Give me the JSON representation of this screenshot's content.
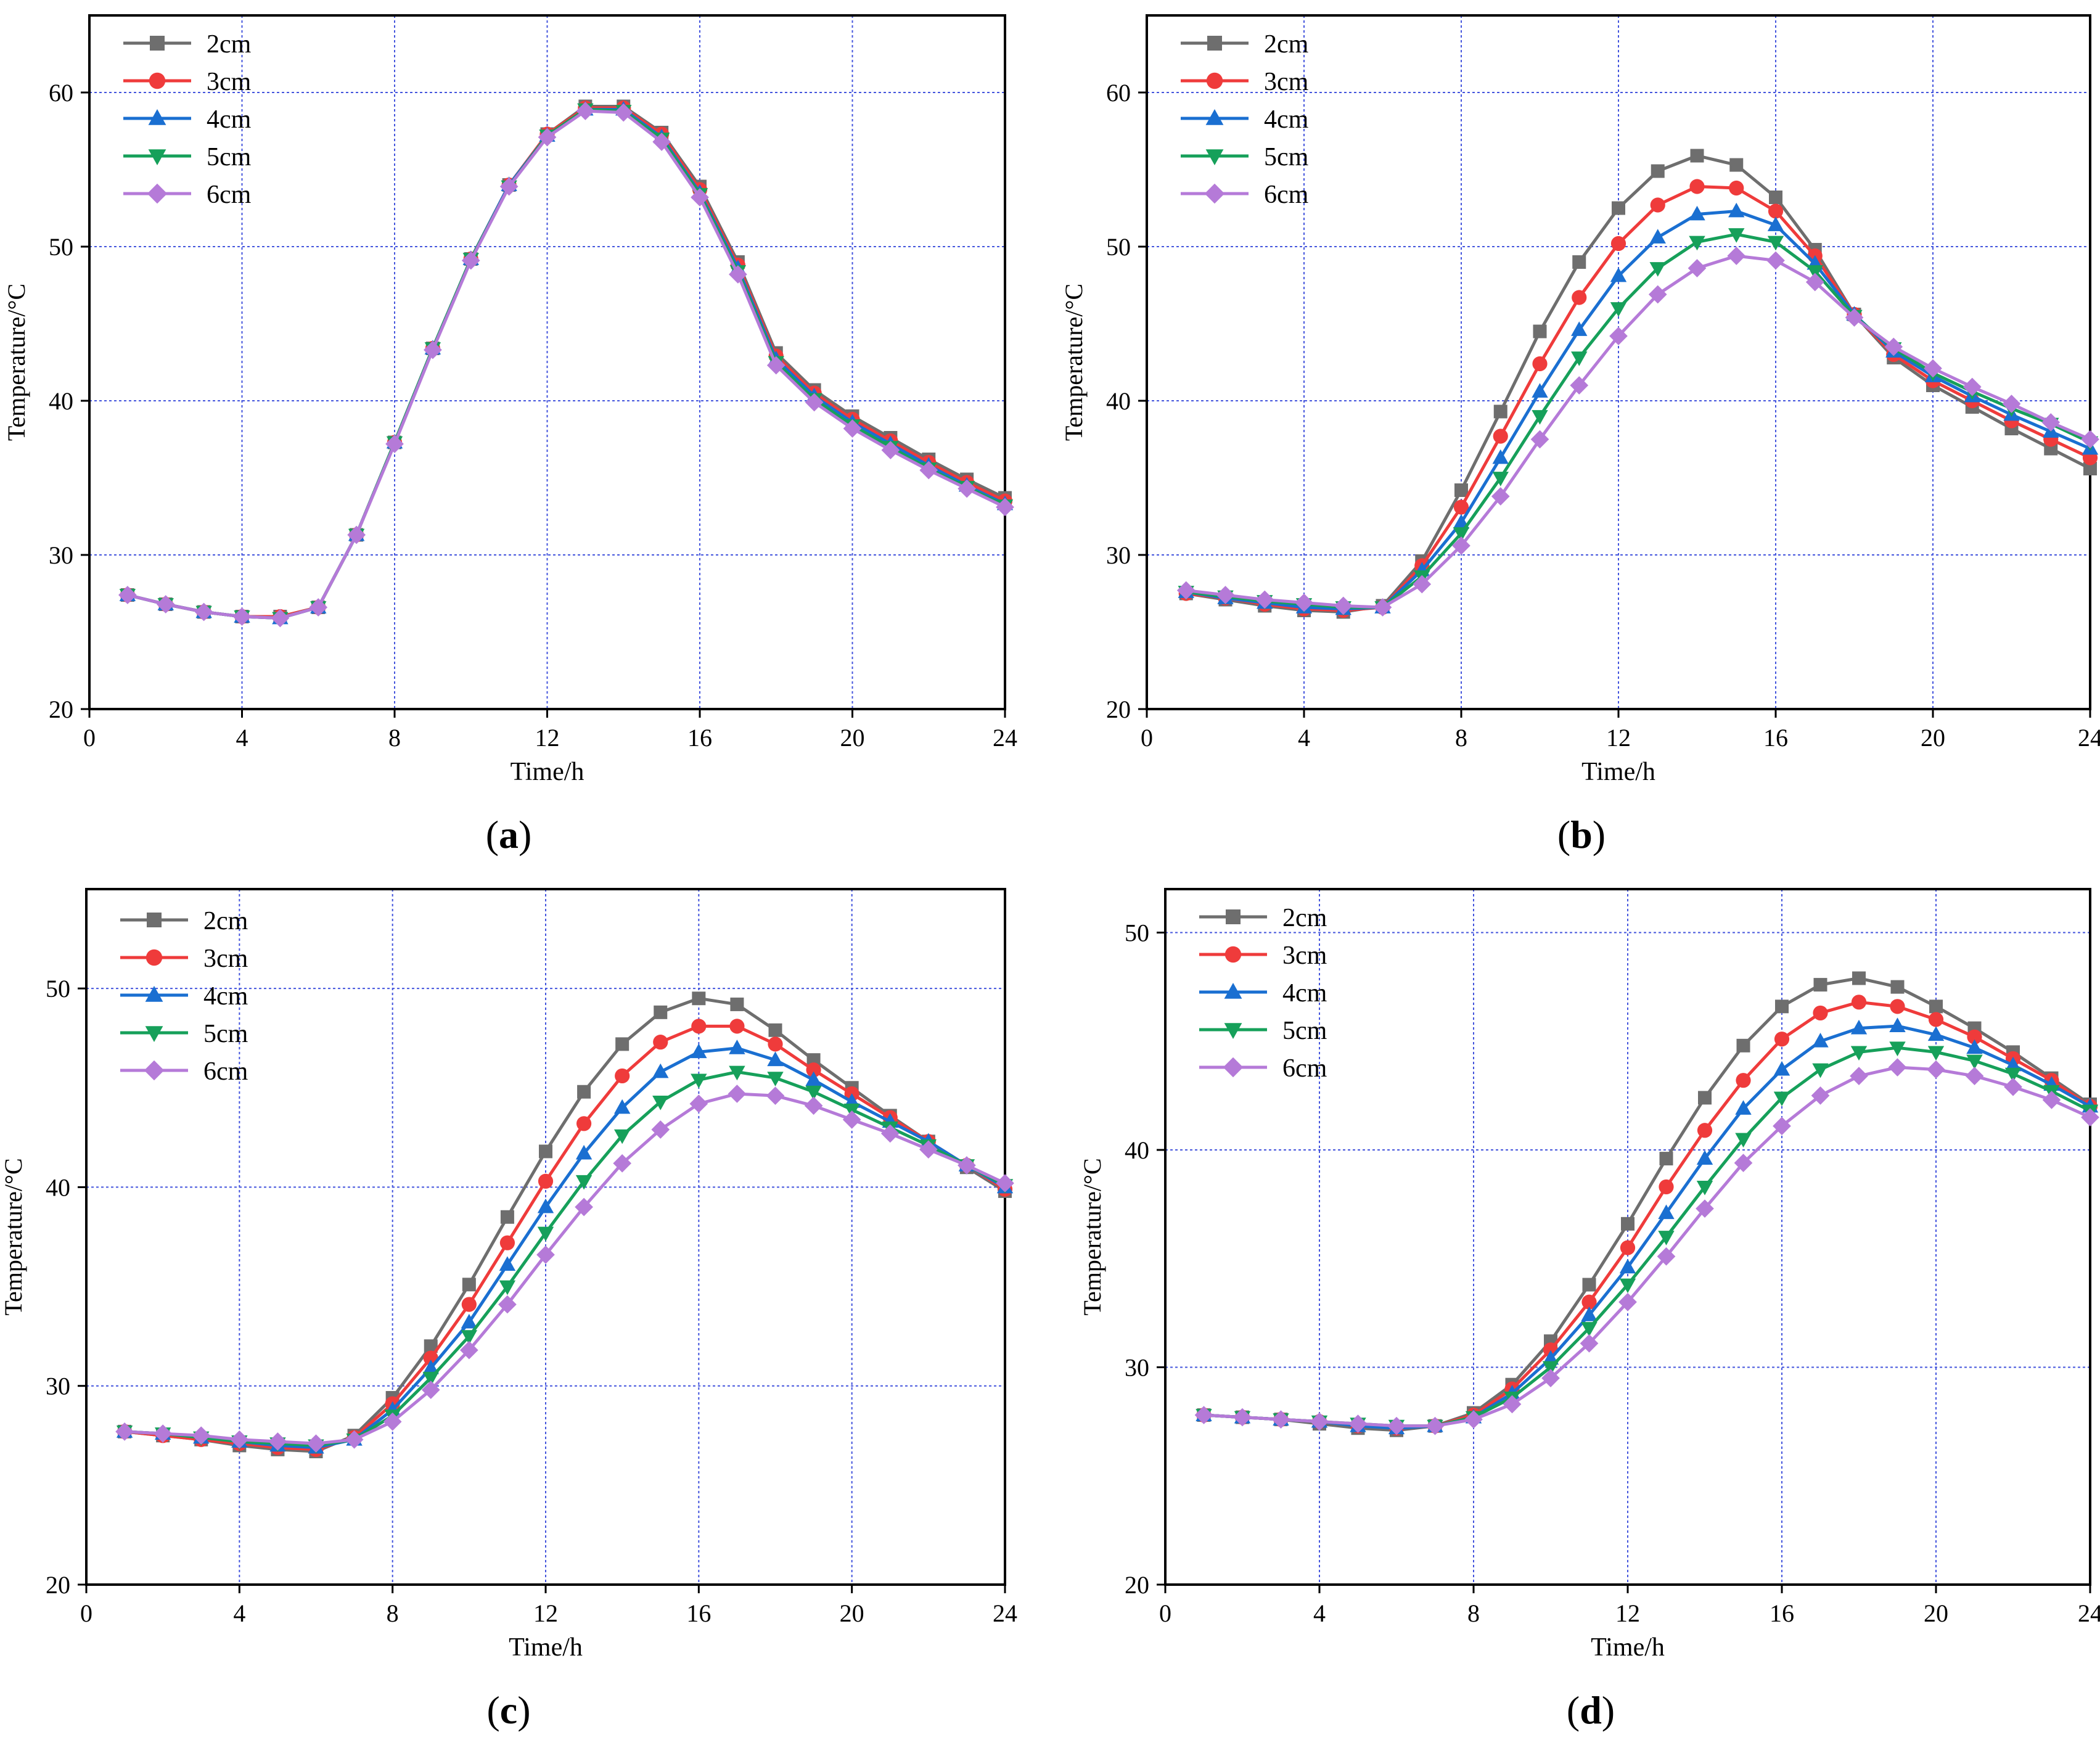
{
  "captions": [
    "(a)",
    "(b)",
    "(c)",
    "(d)"
  ],
  "series_styles": [
    {
      "name": "2cm",
      "color": "#6e6e6e",
      "marker": "square"
    },
    {
      "name": "3cm",
      "color": "#ef3b3b",
      "marker": "circle"
    },
    {
      "name": "4cm",
      "color": "#1a6fd1",
      "marker": "triangle-up"
    },
    {
      "name": "5cm",
      "color": "#16a05a",
      "marker": "triangle-down"
    },
    {
      "name": "6cm",
      "color": "#b57ad8",
      "marker": "diamond"
    }
  ],
  "grid_color": "#4455dd",
  "chart_data": [
    {
      "type": "line",
      "title": "",
      "xlabel": "Time/h",
      "ylabel": "Temperature/°C",
      "xlim": [
        0,
        24
      ],
      "ylim": [
        20,
        65
      ],
      "xticks": [
        0,
        4,
        8,
        12,
        16,
        20,
        24
      ],
      "yticks": [
        20,
        30,
        40,
        50,
        60
      ],
      "grid": true,
      "legend": "top-left",
      "x": [
        1,
        2,
        3,
        4,
        5,
        6,
        7,
        8,
        9,
        10,
        11,
        12,
        13,
        14,
        15,
        16,
        17,
        18,
        19,
        20,
        21,
        22,
        23,
        24
      ],
      "series": [
        {
          "name": "2cm",
          "values": [
            27.4,
            26.8,
            26.3,
            26.0,
            26.0,
            26.6,
            31.3,
            37.3,
            43.4,
            49.2,
            54.0,
            57.3,
            59.1,
            59.1,
            57.4,
            53.9,
            49.0,
            43.1,
            40.7,
            39.0,
            37.6,
            36.2,
            34.9,
            33.7
          ]
        },
        {
          "name": "3cm",
          "values": [
            27.4,
            26.8,
            26.3,
            26.0,
            26.0,
            26.6,
            31.3,
            37.3,
            43.4,
            49.2,
            54.0,
            57.3,
            59.0,
            59.0,
            57.3,
            53.7,
            48.8,
            42.9,
            40.5,
            38.8,
            37.4,
            36.0,
            34.7,
            33.5
          ]
        },
        {
          "name": "4cm",
          "values": [
            27.4,
            26.8,
            26.3,
            26.0,
            25.9,
            26.6,
            31.3,
            37.3,
            43.4,
            49.2,
            54.0,
            57.2,
            58.9,
            58.9,
            57.1,
            53.5,
            48.6,
            42.7,
            40.3,
            38.6,
            37.2,
            35.8,
            34.5,
            33.3
          ]
        },
        {
          "name": "5cm",
          "values": [
            27.4,
            26.8,
            26.3,
            26.0,
            25.9,
            26.6,
            31.3,
            37.3,
            43.4,
            49.2,
            53.9,
            57.2,
            58.9,
            58.8,
            57.0,
            53.4,
            48.4,
            42.5,
            40.1,
            38.4,
            37.0,
            35.6,
            34.4,
            33.2
          ]
        },
        {
          "name": "6cm",
          "values": [
            27.4,
            26.8,
            26.3,
            26.0,
            25.9,
            26.6,
            31.3,
            37.2,
            43.3,
            49.1,
            53.9,
            57.1,
            58.8,
            58.7,
            56.8,
            53.2,
            48.2,
            42.3,
            39.9,
            38.2,
            36.8,
            35.5,
            34.3,
            33.1
          ]
        }
      ]
    },
    {
      "type": "line",
      "title": "",
      "xlabel": "Time/h",
      "ylabel": "Temperature/°C",
      "xlim": [
        0,
        24
      ],
      "ylim": [
        20,
        65
      ],
      "xticks": [
        0,
        4,
        8,
        12,
        16,
        20,
        24
      ],
      "yticks": [
        20,
        30,
        40,
        50,
        60
      ],
      "grid": true,
      "legend": "top-left",
      "x": [
        1,
        2,
        3,
        4,
        5,
        6,
        7,
        8,
        9,
        10,
        11,
        12,
        13,
        14,
        15,
        16,
        17,
        18,
        19,
        20,
        21,
        22,
        23,
        24
      ],
      "series": [
        {
          "name": "2cm",
          "values": [
            27.5,
            27.1,
            26.7,
            26.4,
            26.3,
            26.7,
            29.6,
            34.2,
            39.3,
            44.5,
            49.0,
            52.5,
            54.9,
            55.9,
            55.3,
            53.2,
            49.8,
            45.6,
            42.8,
            41.0,
            39.6,
            38.2,
            36.9,
            35.6
          ]
        },
        {
          "name": "3cm",
          "values": [
            27.5,
            27.2,
            26.8,
            26.5,
            26.4,
            26.6,
            29.3,
            33.1,
            37.7,
            42.4,
            46.7,
            50.2,
            52.7,
            53.9,
            53.8,
            52.3,
            49.4,
            45.6,
            43.0,
            41.3,
            40.0,
            38.7,
            37.5,
            36.3
          ]
        },
        {
          "name": "4cm",
          "values": [
            27.6,
            27.2,
            26.9,
            26.6,
            26.5,
            26.6,
            29.0,
            32.1,
            36.3,
            40.6,
            44.6,
            48.1,
            50.6,
            52.1,
            52.3,
            51.4,
            48.9,
            45.6,
            43.2,
            41.6,
            40.3,
            39.1,
            38.0,
            36.9
          ]
        },
        {
          "name": "5cm",
          "values": [
            27.6,
            27.3,
            27.0,
            26.8,
            26.6,
            26.6,
            28.6,
            31.4,
            35.0,
            39.0,
            42.8,
            46.0,
            48.6,
            50.3,
            50.8,
            50.3,
            48.4,
            45.5,
            43.4,
            41.8,
            40.6,
            39.5,
            38.5,
            37.3
          ]
        },
        {
          "name": "6cm",
          "values": [
            27.7,
            27.4,
            27.1,
            26.9,
            26.7,
            26.6,
            28.1,
            30.6,
            33.8,
            37.5,
            41.0,
            44.2,
            46.9,
            48.6,
            49.4,
            49.1,
            47.7,
            45.4,
            43.5,
            42.1,
            40.9,
            39.8,
            38.6,
            37.5
          ]
        }
      ]
    },
    {
      "type": "line",
      "title": "",
      "xlabel": "Time/h",
      "ylabel": "Temperature/°C",
      "xlim": [
        0,
        24
      ],
      "ylim": [
        20,
        55
      ],
      "xticks": [
        0,
        4,
        8,
        12,
        16,
        20,
        24
      ],
      "yticks": [
        20,
        30,
        40,
        50
      ],
      "grid": true,
      "legend": "top-left",
      "x": [
        1,
        2,
        3,
        4,
        5,
        6,
        7,
        8,
        9,
        10,
        11,
        12,
        13,
        14,
        15,
        16,
        17,
        18,
        19,
        20,
        21,
        22,
        23,
        24
      ],
      "series": [
        {
          "name": "2cm",
          "values": [
            27.7,
            27.5,
            27.3,
            27.0,
            26.8,
            26.7,
            27.5,
            29.4,
            32.0,
            35.1,
            38.5,
            41.8,
            44.8,
            47.2,
            48.8,
            49.5,
            49.2,
            47.9,
            46.4,
            45.0,
            43.6,
            42.3,
            41.0,
            39.8
          ]
        },
        {
          "name": "3cm",
          "values": [
            27.7,
            27.5,
            27.3,
            27.1,
            26.9,
            26.8,
            27.4,
            29.1,
            31.4,
            34.1,
            37.2,
            40.3,
            43.2,
            45.6,
            47.3,
            48.1,
            48.1,
            47.2,
            45.9,
            44.7,
            43.5,
            42.3,
            41.1,
            39.9
          ]
        },
        {
          "name": "4cm",
          "values": [
            27.7,
            27.6,
            27.4,
            27.2,
            27.0,
            26.9,
            27.3,
            28.8,
            30.9,
            33.2,
            36.1,
            39.0,
            41.7,
            44.0,
            45.8,
            46.8,
            47.0,
            46.4,
            45.4,
            44.3,
            43.3,
            42.3,
            41.1,
            40.0
          ]
        },
        {
          "name": "5cm",
          "values": [
            27.7,
            27.6,
            27.4,
            27.2,
            27.1,
            27.0,
            27.3,
            28.5,
            30.4,
            32.5,
            35.0,
            37.7,
            40.3,
            42.6,
            44.3,
            45.4,
            45.8,
            45.5,
            44.8,
            43.9,
            43.0,
            42.1,
            41.1,
            40.1
          ]
        },
        {
          "name": "6cm",
          "values": [
            27.7,
            27.6,
            27.5,
            27.3,
            27.2,
            27.1,
            27.3,
            28.2,
            29.8,
            31.8,
            34.1,
            36.6,
            39.0,
            41.2,
            42.9,
            44.2,
            44.7,
            44.6,
            44.1,
            43.4,
            42.7,
            41.9,
            41.1,
            40.2
          ]
        }
      ]
    },
    {
      "type": "line",
      "title": "",
      "xlabel": "Time/h",
      "ylabel": "Temperature/°C",
      "xlim": [
        0,
        24
      ],
      "ylim": [
        20,
        52
      ],
      "xticks": [
        0,
        4,
        8,
        12,
        16,
        20,
        24
      ],
      "yticks": [
        20,
        30,
        40,
        50
      ],
      "grid": true,
      "legend": "top-left",
      "x": [
        1,
        2,
        3,
        4,
        5,
        6,
        7,
        8,
        9,
        10,
        11,
        12,
        13,
        14,
        15,
        16,
        17,
        18,
        19,
        20,
        21,
        22,
        23,
        24
      ],
      "series": [
        {
          "name": "2cm",
          "values": [
            27.8,
            27.7,
            27.6,
            27.4,
            27.2,
            27.1,
            27.3,
            27.9,
            29.2,
            31.2,
            33.8,
            36.6,
            39.6,
            42.4,
            44.8,
            46.6,
            47.6,
            47.9,
            47.5,
            46.6,
            45.6,
            44.5,
            43.3,
            42.1
          ]
        },
        {
          "name": "3cm",
          "values": [
            27.8,
            27.7,
            27.6,
            27.5,
            27.3,
            27.2,
            27.3,
            27.8,
            29.0,
            30.8,
            33.0,
            35.5,
            38.3,
            40.9,
            43.2,
            45.1,
            46.3,
            46.8,
            46.6,
            46.0,
            45.2,
            44.2,
            43.2,
            42.0
          ]
        },
        {
          "name": "4cm",
          "values": [
            27.8,
            27.7,
            27.6,
            27.5,
            27.3,
            27.2,
            27.3,
            27.7,
            28.8,
            30.4,
            32.4,
            34.6,
            37.1,
            39.6,
            41.9,
            43.7,
            45.0,
            45.6,
            45.7,
            45.3,
            44.7,
            43.9,
            43.0,
            42.0
          ]
        },
        {
          "name": "5cm",
          "values": [
            27.8,
            27.7,
            27.6,
            27.5,
            27.4,
            27.3,
            27.3,
            27.7,
            28.6,
            30.0,
            31.8,
            33.8,
            36.0,
            38.3,
            40.5,
            42.4,
            43.7,
            44.5,
            44.7,
            44.5,
            44.1,
            43.5,
            42.7,
            41.8
          ]
        },
        {
          "name": "6cm",
          "values": [
            27.8,
            27.7,
            27.6,
            27.5,
            27.4,
            27.3,
            27.3,
            27.6,
            28.3,
            29.5,
            31.1,
            33.0,
            35.1,
            37.3,
            39.4,
            41.1,
            42.5,
            43.4,
            43.8,
            43.7,
            43.4,
            42.9,
            42.3,
            41.5
          ]
        }
      ]
    }
  ]
}
